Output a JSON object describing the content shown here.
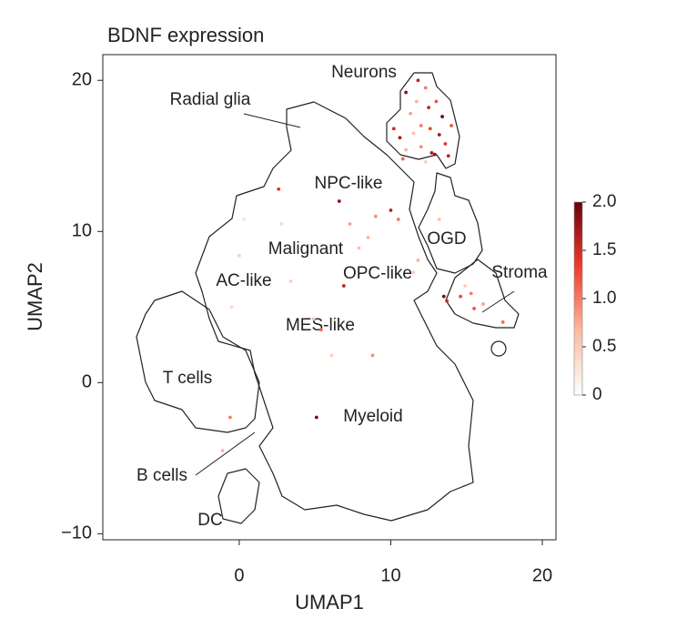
{
  "chart_data": {
    "type": "scatter",
    "title": "BDNF expression",
    "x_label": "UMAP1",
    "y_label": "UMAP2",
    "xlim": [
      -9,
      20.9
    ],
    "ylim": [
      -10.4,
      21.7
    ],
    "xticks": [
      0,
      10,
      20
    ],
    "yticks": [
      {
        "value": -10,
        "label": "−10"
      },
      0,
      10,
      20
    ],
    "annotations": [
      "Neurons",
      "Radial glia",
      "NPC-like",
      "Malignant",
      "OGD",
      "Stroma",
      "AC-like",
      "OPC-like",
      "MES-like",
      "T cells",
      "Myeloid",
      "B cells",
      "DC"
    ],
    "colorscale": {
      "range": [
        0,
        2
      ],
      "colors": [
        "#ffffff",
        "#fcbba1",
        "#ef3b2c",
        "#67000d"
      ],
      "ticks": [
        0,
        0.5,
        {
          "value": 1,
          "label": "1.0"
        },
        1.5,
        {
          "value": 2,
          "label": "2.0"
        }
      ]
    },
    "points": {
      "x": [
        11.8,
        12.3,
        11.0,
        13.0,
        12.5,
        13.4,
        11.3,
        12.0,
        10.2,
        10.6,
        11.5,
        12.6,
        13.2,
        13.6,
        12.0,
        11.0,
        12.9,
        13.8,
        10.8,
        12.3,
        14.0,
        11.7,
        2.6,
        6.6,
        10.0,
        9.0,
        7.3,
        8.5,
        10.5,
        2.8,
        0.3,
        0.0,
        3.4,
        6.9,
        7.9,
        11.5,
        11.8,
        13.2,
        13.5,
        14.6,
        15.3,
        15.5,
        16.1,
        17.4,
        4.9,
        5.4,
        8.8,
        6.1,
        5.1,
        -0.6,
        -1.1,
        -0.5,
        13.7,
        14.9,
        12.7
      ],
      "y": [
        20.0,
        19.5,
        19.2,
        18.6,
        18.2,
        17.6,
        17.8,
        17.0,
        16.8,
        16.2,
        16.5,
        16.8,
        16.4,
        15.8,
        15.6,
        15.4,
        15.1,
        15.0,
        14.8,
        14.6,
        17.0,
        18.6,
        12.8,
        12.0,
        11.4,
        11.0,
        10.5,
        9.6,
        10.8,
        10.5,
        10.8,
        8.4,
        6.7,
        6.4,
        8.9,
        7.3,
        8.1,
        10.8,
        5.7,
        5.7,
        5.9,
        4.9,
        5.2,
        4.0,
        4.2,
        3.5,
        1.8,
        1.8,
        -2.3,
        -2.3,
        -4.5,
        5.0,
        5.4,
        6.4,
        15.2
      ],
      "expression": [
        1.6,
        1.0,
        1.8,
        1.2,
        1.6,
        1.9,
        0.8,
        1.0,
        1.5,
        1.7,
        0.6,
        1.3,
        1.7,
        1.4,
        0.9,
        0.7,
        1.8,
        1.6,
        1.1,
        0.5,
        1.2,
        0.7,
        1.4,
        1.8,
        1.6,
        0.9,
        0.8,
        0.7,
        1.0,
        0.4,
        0.3,
        0.5,
        0.5,
        1.6,
        0.6,
        0.5,
        0.7,
        0.6,
        1.9,
        1.3,
        1.0,
        1.2,
        0.8,
        1.1,
        0.6,
        1.1,
        0.9,
        0.5,
        1.9,
        1.0,
        0.7,
        0.4,
        1.5,
        0.5,
        1.7
      ]
    }
  }
}
